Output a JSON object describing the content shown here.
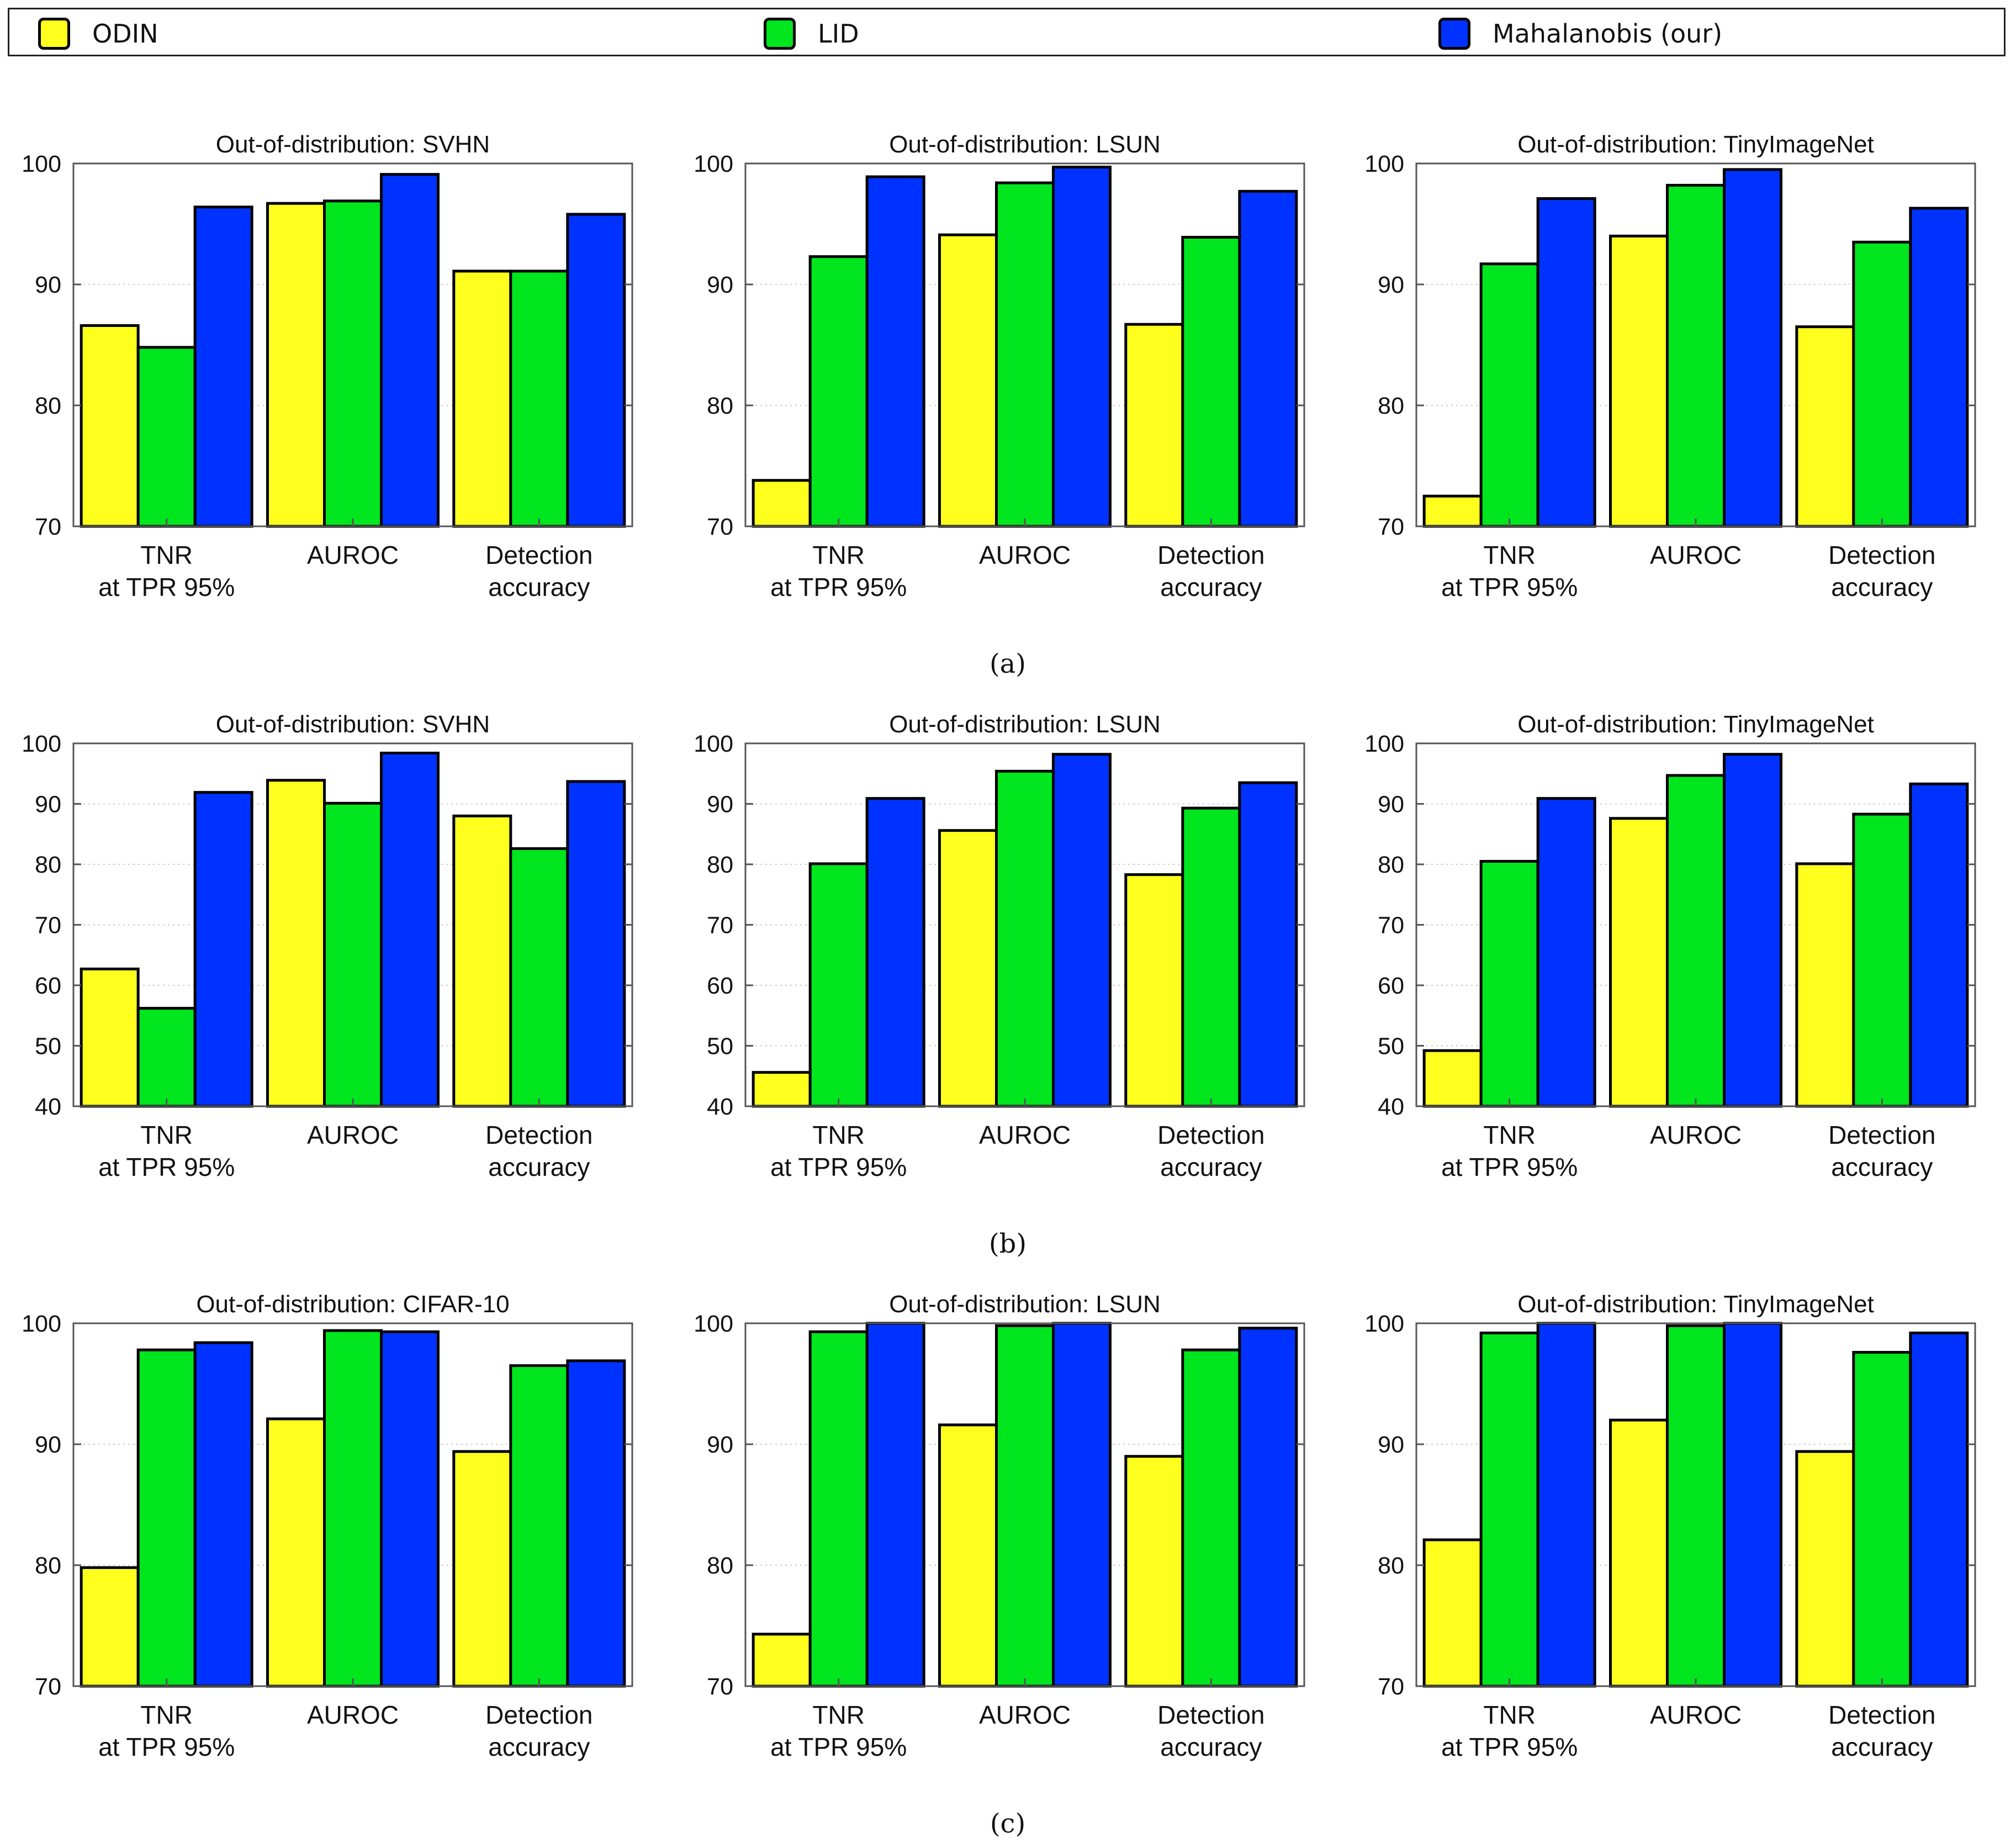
{
  "legend": [
    {
      "label": "ODIN",
      "color": "#ffff1e"
    },
    {
      "label": "LID",
      "color": "#00e61e"
    },
    {
      "label": "Mahalanobis (our)",
      "color": "#0032ff"
    }
  ],
  "colors": {
    "odin": "#ffff1e",
    "lid": "#00e61e",
    "mahalanobis": "#0032ff",
    "grid": "#cccccc"
  },
  "categories": [
    [
      "TNR",
      "at TPR 95%"
    ],
    [
      "AUROC"
    ],
    [
      "Detection",
      "accuracy"
    ]
  ],
  "captions": [
    "(a)",
    "(b)",
    "(c)"
  ],
  "chart_data": [
    {
      "type": "bar",
      "title": "Out-of-distribution: SVHN",
      "ylim": [
        70,
        100
      ],
      "yticks": [
        70,
        80,
        90,
        100
      ],
      "grid": true,
      "categories": [
        "TNR at TPR 95%",
        "AUROC",
        "Detection accuracy"
      ],
      "series": [
        {
          "name": "ODIN",
          "values": [
            86.6,
            96.7,
            91.1
          ]
        },
        {
          "name": "LID",
          "values": [
            84.8,
            96.9,
            91.1
          ]
        },
        {
          "name": "Mahalanobis (our)",
          "values": [
            96.4,
            99.1,
            95.8
          ]
        }
      ]
    },
    {
      "type": "bar",
      "title": "Out-of-distribution: LSUN",
      "ylim": [
        70,
        100
      ],
      "yticks": [
        70,
        80,
        90,
        100
      ],
      "grid": true,
      "categories": [
        "TNR at TPR 95%",
        "AUROC",
        "Detection accuracy"
      ],
      "series": [
        {
          "name": "ODIN",
          "values": [
            73.8,
            94.1,
            86.7
          ]
        },
        {
          "name": "LID",
          "values": [
            92.3,
            98.4,
            93.9
          ]
        },
        {
          "name": "Mahalanobis (our)",
          "values": [
            98.9,
            99.7,
            97.7
          ]
        }
      ]
    },
    {
      "type": "bar",
      "title": "Out-of-distribution: TinyImageNet",
      "ylim": [
        70,
        100
      ],
      "yticks": [
        70,
        80,
        90,
        100
      ],
      "grid": true,
      "categories": [
        "TNR at TPR 95%",
        "AUROC",
        "Detection accuracy"
      ],
      "series": [
        {
          "name": "ODIN",
          "values": [
            72.5,
            94.0,
            86.5
          ]
        },
        {
          "name": "LID",
          "values": [
            91.7,
            98.2,
            93.5
          ]
        },
        {
          "name": "Mahalanobis (our)",
          "values": [
            97.1,
            99.5,
            96.3
          ]
        }
      ]
    },
    {
      "type": "bar",
      "title": "Out-of-distribution: SVHN",
      "ylim": [
        40,
        100
      ],
      "yticks": [
        40,
        50,
        60,
        70,
        80,
        90,
        100
      ],
      "grid": true,
      "categories": [
        "TNR at TPR 95%",
        "AUROC",
        "Detection accuracy"
      ],
      "series": [
        {
          "name": "ODIN",
          "values": [
            62.7,
            93.9,
            88.0
          ]
        },
        {
          "name": "LID",
          "values": [
            56.2,
            90.1,
            82.6
          ]
        },
        {
          "name": "Mahalanobis (our)",
          "values": [
            91.9,
            98.4,
            93.7
          ]
        }
      ]
    },
    {
      "type": "bar",
      "title": "Out-of-distribution: LSUN",
      "ylim": [
        40,
        100
      ],
      "yticks": [
        40,
        50,
        60,
        70,
        80,
        90,
        100
      ],
      "grid": true,
      "categories": [
        "TNR at TPR 95%",
        "AUROC",
        "Detection accuracy"
      ],
      "series": [
        {
          "name": "ODIN",
          "values": [
            45.6,
            85.6,
            78.3
          ]
        },
        {
          "name": "LID",
          "values": [
            80.1,
            95.4,
            89.3
          ]
        },
        {
          "name": "Mahalanobis (our)",
          "values": [
            90.9,
            98.2,
            93.5
          ]
        }
      ]
    },
    {
      "type": "bar",
      "title": "Out-of-distribution: TinyImageNet",
      "ylim": [
        40,
        100
      ],
      "yticks": [
        40,
        50,
        60,
        70,
        80,
        90,
        100
      ],
      "grid": true,
      "categories": [
        "TNR at TPR 95%",
        "AUROC",
        "Detection accuracy"
      ],
      "series": [
        {
          "name": "ODIN",
          "values": [
            49.2,
            87.6,
            80.1
          ]
        },
        {
          "name": "LID",
          "values": [
            80.5,
            94.7,
            88.3
          ]
        },
        {
          "name": "Mahalanobis (our)",
          "values": [
            90.9,
            98.2,
            93.3
          ]
        }
      ]
    },
    {
      "type": "bar",
      "title": "Out-of-distribution: CIFAR-10",
      "ylim": [
        70,
        100
      ],
      "yticks": [
        70,
        80,
        90,
        100
      ],
      "grid": true,
      "categories": [
        "TNR at TPR 95%",
        "AUROC",
        "Detection accuracy"
      ],
      "series": [
        {
          "name": "ODIN",
          "values": [
            79.8,
            92.1,
            89.4
          ]
        },
        {
          "name": "LID",
          "values": [
            97.8,
            99.4,
            96.5
          ]
        },
        {
          "name": "Mahalanobis (our)",
          "values": [
            98.4,
            99.3,
            96.9
          ]
        }
      ]
    },
    {
      "type": "bar",
      "title": "Out-of-distribution: LSUN",
      "ylim": [
        70,
        100
      ],
      "yticks": [
        70,
        80,
        90,
        100
      ],
      "grid": true,
      "categories": [
        "TNR at TPR 95%",
        "AUROC",
        "Detection accuracy"
      ],
      "series": [
        {
          "name": "ODIN",
          "values": [
            74.3,
            91.6,
            89.0
          ]
        },
        {
          "name": "LID",
          "values": [
            99.3,
            99.8,
            97.8
          ]
        },
        {
          "name": "Mahalanobis (our)",
          "values": [
            100.0,
            100.0,
            99.6
          ]
        }
      ]
    },
    {
      "type": "bar",
      "title": "Out-of-distribution: TinyImageNet",
      "ylim": [
        70,
        100
      ],
      "yticks": [
        70,
        80,
        90,
        100
      ],
      "grid": true,
      "categories": [
        "TNR at TPR 95%",
        "AUROC",
        "Detection accuracy"
      ],
      "series": [
        {
          "name": "ODIN",
          "values": [
            82.1,
            92.0,
            89.4
          ]
        },
        {
          "name": "LID",
          "values": [
            99.2,
            99.8,
            97.6
          ]
        },
        {
          "name": "Mahalanobis (our)",
          "values": [
            100.0,
            100.0,
            99.2
          ]
        }
      ]
    }
  ]
}
